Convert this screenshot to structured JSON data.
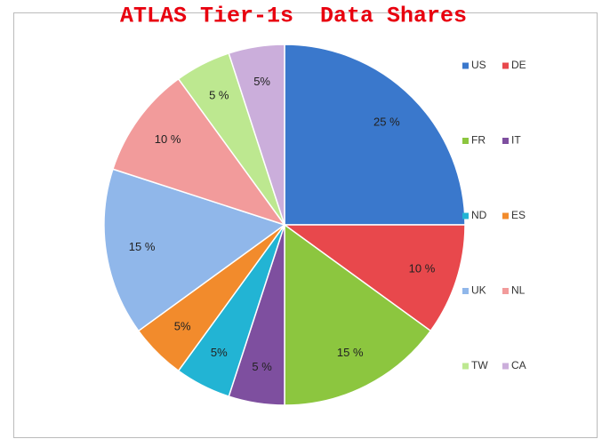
{
  "chart_data": {
    "type": "pie",
    "title": "ATLAS Tier-1s  Data Shares",
    "categories": [
      "US",
      "DE",
      "FR",
      "IT",
      "ND",
      "ES",
      "UK",
      "NL",
      "TW",
      "CA"
    ],
    "values": [
      25,
      10,
      15,
      5,
      5,
      5,
      15,
      10,
      5,
      5
    ],
    "value_labels": [
      "25 %",
      "10 %",
      "15 %",
      "5 %",
      "5%",
      "5%",
      "15 %",
      "10 %",
      "5 %",
      "5%"
    ],
    "colors": [
      "#3a78cc",
      "#e8484c",
      "#8cc63f",
      "#7e4f9f",
      "#22b4d4",
      "#f28b2c",
      "#90b7ea",
      "#f29b9b",
      "#bde890",
      "#cbaedb"
    ]
  }
}
